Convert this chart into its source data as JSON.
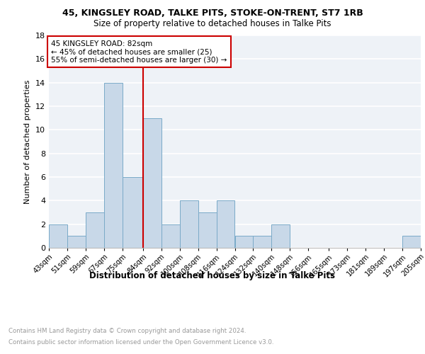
{
  "title1": "45, KINGSLEY ROAD, TALKE PITS, STOKE-ON-TRENT, ST7 1RB",
  "title2": "Size of property relative to detached houses in Talke Pits",
  "xlabel": "Distribution of detached houses by size in Talke Pits",
  "ylabel": "Number of detached properties",
  "bin_labels": [
    "43sqm",
    "51sqm",
    "59sqm",
    "67sqm",
    "75sqm",
    "84sqm",
    "92sqm",
    "100sqm",
    "108sqm",
    "116sqm",
    "124sqm",
    "132sqm",
    "140sqm",
    "148sqm",
    "156sqm",
    "165sqm",
    "173sqm",
    "181sqm",
    "189sqm",
    "197sqm",
    "205sqm"
  ],
  "bar_heights": [
    2,
    1,
    3,
    14,
    6,
    11,
    2,
    4,
    3,
    4,
    1,
    1,
    2,
    0,
    0,
    0,
    0,
    0,
    0,
    1,
    0
  ],
  "bar_color": "#c8d8e8",
  "bar_edge_color": "#7aaac8",
  "red_line_x": 84,
  "ylim": [
    0,
    18
  ],
  "yticks": [
    0,
    2,
    4,
    6,
    8,
    10,
    12,
    14,
    16,
    18
  ],
  "annotation_title": "45 KINGSLEY ROAD: 82sqm",
  "annotation_line1": "← 45% of detached houses are smaller (25)",
  "annotation_line2": "55% of semi-detached houses are larger (30) →",
  "annotation_box_color": "#ffffff",
  "annotation_box_edge": "#cc0000",
  "red_line_color": "#cc0000",
  "footer1": "Contains HM Land Registry data © Crown copyright and database right 2024.",
  "footer2": "Contains public sector information licensed under the Open Government Licence v3.0.",
  "bg_color": "#eef2f7",
  "grid_color": "#ffffff"
}
